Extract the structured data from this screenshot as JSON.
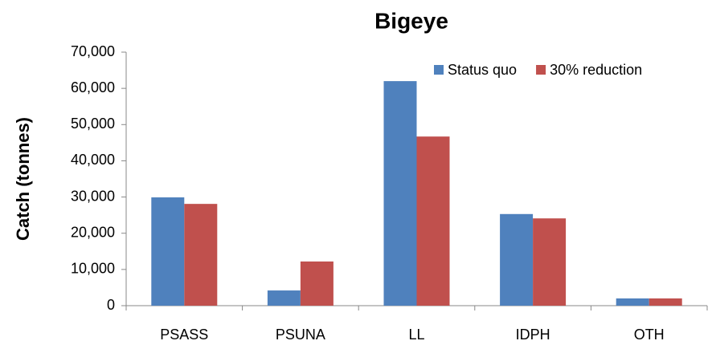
{
  "chart_data": {
    "type": "bar",
    "title": "Bigeye",
    "y_label": "Catch (tonnes)",
    "categories": [
      "PSASS",
      "PSUNA",
      "LL",
      "IDPH",
      "OTH"
    ],
    "series": [
      {
        "name": "Status quo",
        "color": "#4f81bd",
        "values": [
          29900,
          4200,
          62000,
          25300,
          2000
        ]
      },
      {
        "name": "30% reduction",
        "color": "#c0504d",
        "values": [
          28100,
          12200,
          46700,
          24100,
          2000
        ]
      }
    ],
    "ylim": [
      0,
      70000
    ],
    "yticks": [
      0,
      {
        "value": 10000,
        "label": "10,000"
      },
      {
        "value": 20000,
        "label": "20,000"
      },
      {
        "value": 30000,
        "label": "30,000"
      },
      {
        "value": 40000,
        "label": "40,000"
      },
      {
        "value": 50000,
        "label": "50,000"
      },
      {
        "value": 60000,
        "label": "60,000"
      },
      {
        "value": 70000,
        "label": "70,000"
      }
    ],
    "legend": "top-right"
  }
}
